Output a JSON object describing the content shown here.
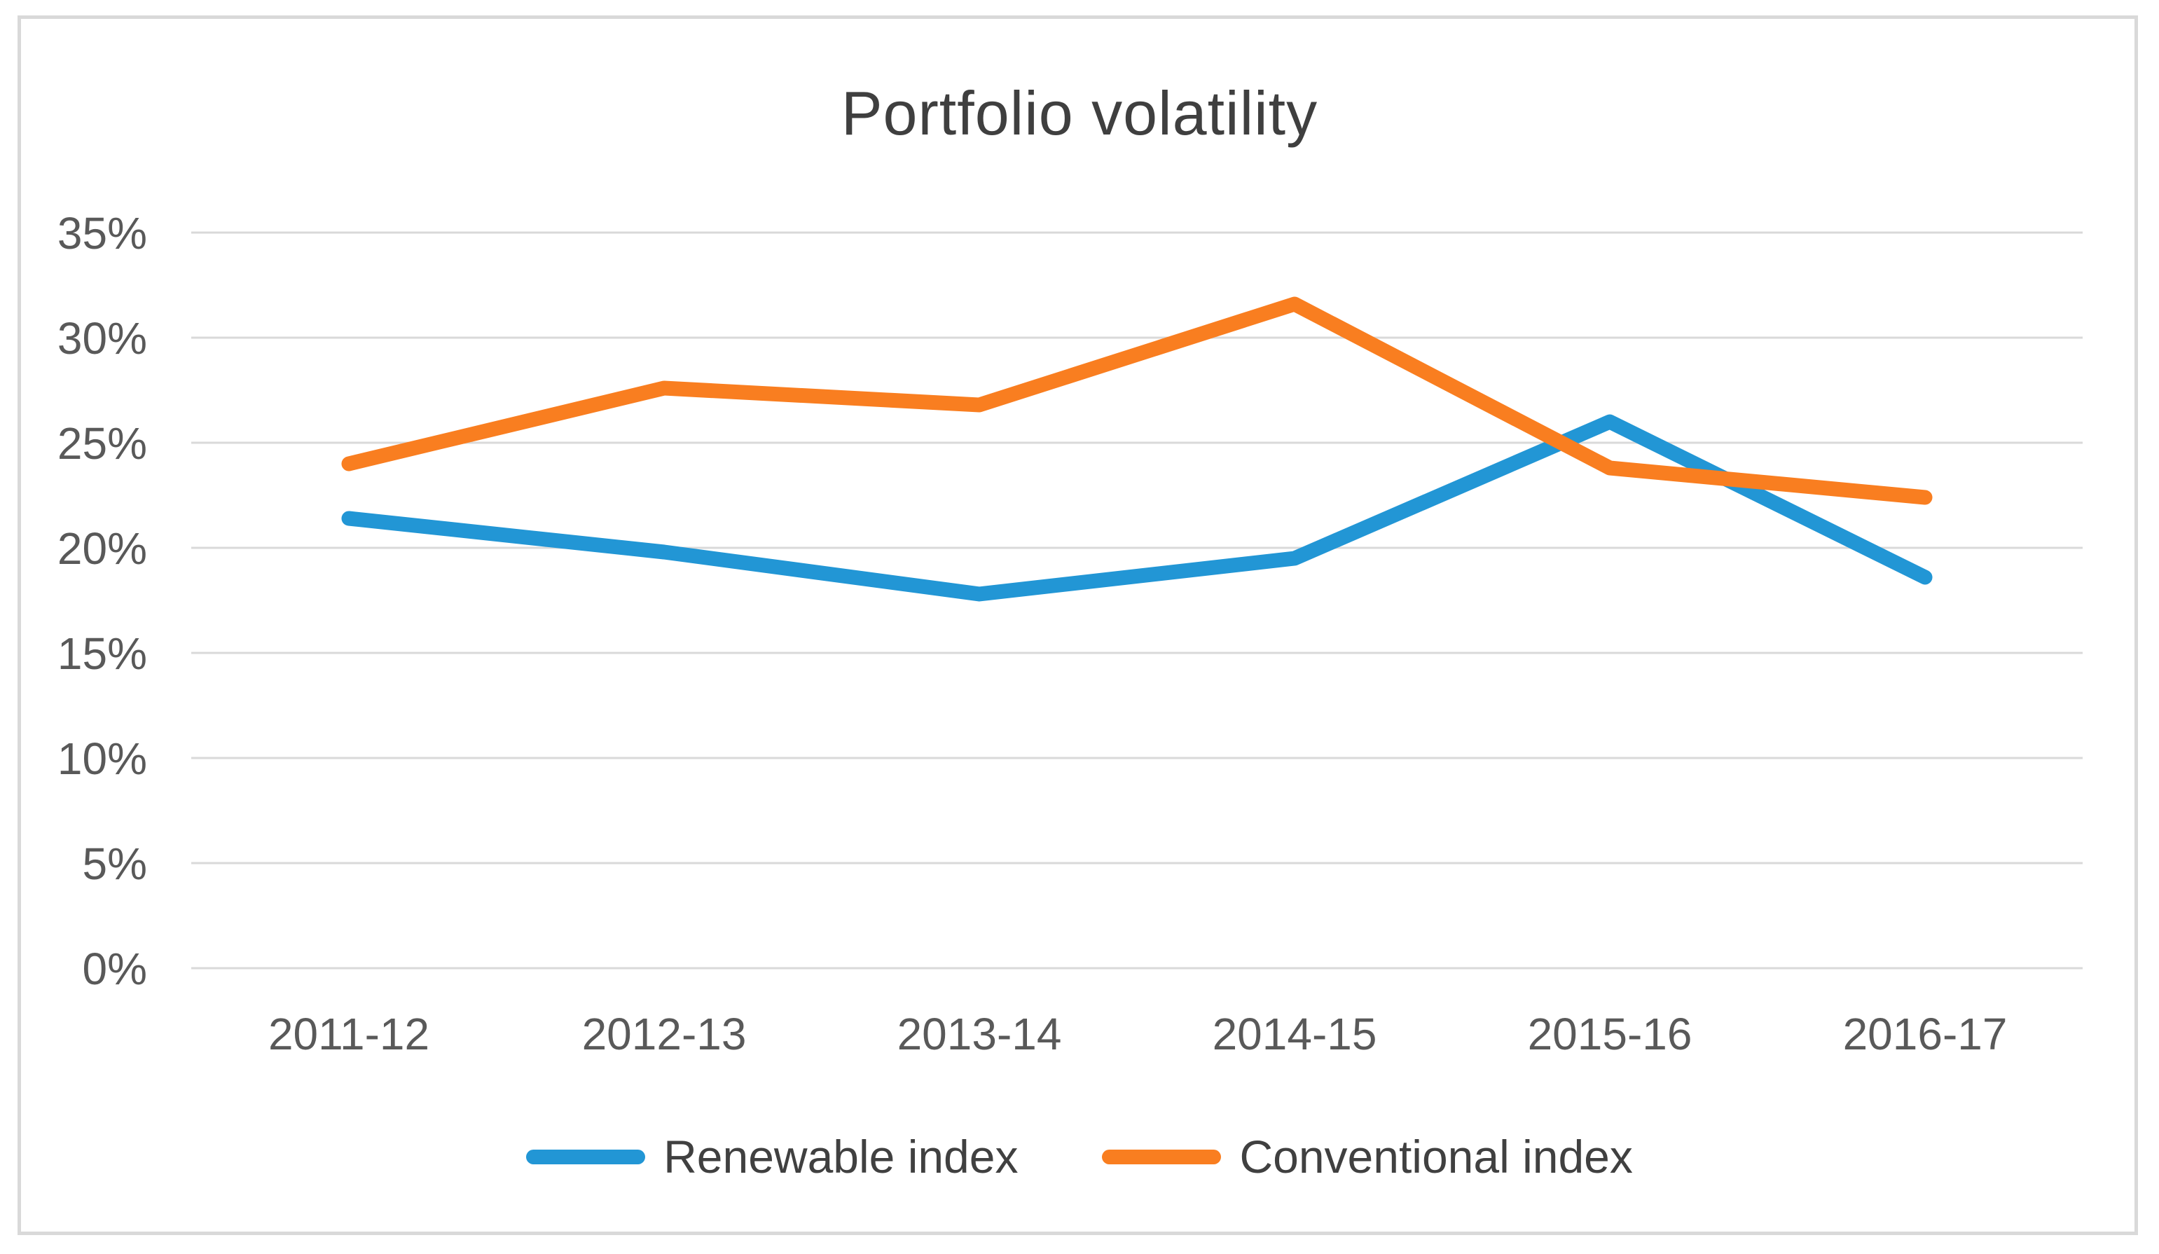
{
  "chart_data": {
    "type": "line",
    "title": "Portfolio volatility",
    "categories": [
      "2011-12",
      "2012-13",
      "2013-14",
      "2014-15",
      "2015-16",
      "2016-17"
    ],
    "series": [
      {
        "name": "Renewable index",
        "color": "#2296D5",
        "values": [
          21.4,
          19.8,
          17.8,
          19.5,
          26.0,
          18.6
        ]
      },
      {
        "name": "Conventional index",
        "color": "#F97E20",
        "values": [
          24.0,
          27.6,
          26.8,
          31.6,
          23.8,
          22.4
        ]
      }
    ],
    "xlabel": "",
    "ylabel": "",
    "y_axis": {
      "min": 0,
      "max": 35,
      "step": 5,
      "tick_labels": [
        "35%",
        "30%",
        "25%",
        "20%",
        "15%",
        "10%",
        "5%",
        "0%"
      ]
    },
    "grid": "horizontal",
    "legend_position": "bottom",
    "colors": {
      "gridline": "#D9D9D9",
      "axis_label": "#595959",
      "title": "#3F3F3F",
      "frame_border": "#D9D9D9",
      "background": "#FFFFFF"
    }
  }
}
